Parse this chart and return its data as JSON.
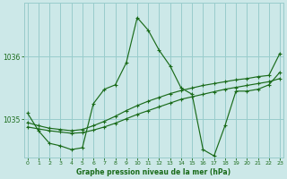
{
  "title": "Graphe pression niveau de la mer (hPa)",
  "bg_color": "#cce8e8",
  "grid_color": "#99cccc",
  "line_color": "#1a6b1a",
  "x_ticks": [
    0,
    1,
    2,
    3,
    4,
    5,
    6,
    7,
    8,
    9,
    10,
    11,
    12,
    13,
    14,
    15,
    16,
    17,
    18,
    19,
    20,
    21,
    22,
    23
  ],
  "y_ticks": [
    1035,
    1036
  ],
  "ylim": [
    1034.4,
    1036.85
  ],
  "xlim": [
    -0.3,
    23.3
  ],
  "series_zigzag_x": [
    0,
    1,
    2,
    3,
    4,
    5,
    6,
    7,
    8,
    9,
    10,
    11,
    12,
    13,
    14,
    15,
    16,
    17,
    18,
    19,
    20,
    21,
    22,
    23
  ],
  "series_zigzag_y": [
    1035.1,
    1034.82,
    1034.62,
    1034.58,
    1034.52,
    1034.55,
    1035.25,
    1035.48,
    1035.55,
    1035.9,
    1036.62,
    1036.42,
    1036.1,
    1035.85,
    1035.5,
    1035.4,
    1034.52,
    1034.42,
    1034.9,
    1035.45,
    1035.45,
    1035.48,
    1035.55,
    1035.75
  ],
  "series_trend1_x": [
    0,
    1,
    2,
    3,
    4,
    5,
    6,
    7,
    8,
    9,
    10,
    11,
    12,
    13,
    14,
    15,
    16,
    17,
    18,
    19,
    20,
    21,
    22,
    23
  ],
  "series_trend1_y": [
    1034.88,
    1034.85,
    1034.82,
    1034.8,
    1034.78,
    1034.79,
    1034.83,
    1034.88,
    1034.94,
    1035.01,
    1035.08,
    1035.14,
    1035.2,
    1035.26,
    1035.32,
    1035.36,
    1035.4,
    1035.44,
    1035.48,
    1035.51,
    1035.54,
    1035.57,
    1035.6,
    1035.65
  ],
  "series_trend2_x": [
    0,
    1,
    2,
    3,
    4,
    5,
    6,
    7,
    8,
    9,
    10,
    11,
    12,
    13,
    14,
    15,
    16,
    17,
    18,
    19,
    20,
    21,
    22,
    23
  ],
  "series_trend2_y": [
    1034.95,
    1034.9,
    1034.86,
    1034.84,
    1034.82,
    1034.84,
    1034.9,
    1034.97,
    1035.05,
    1035.14,
    1035.22,
    1035.29,
    1035.35,
    1035.41,
    1035.46,
    1035.5,
    1035.54,
    1035.57,
    1035.6,
    1035.63,
    1035.65,
    1035.68,
    1035.7,
    1036.05
  ]
}
